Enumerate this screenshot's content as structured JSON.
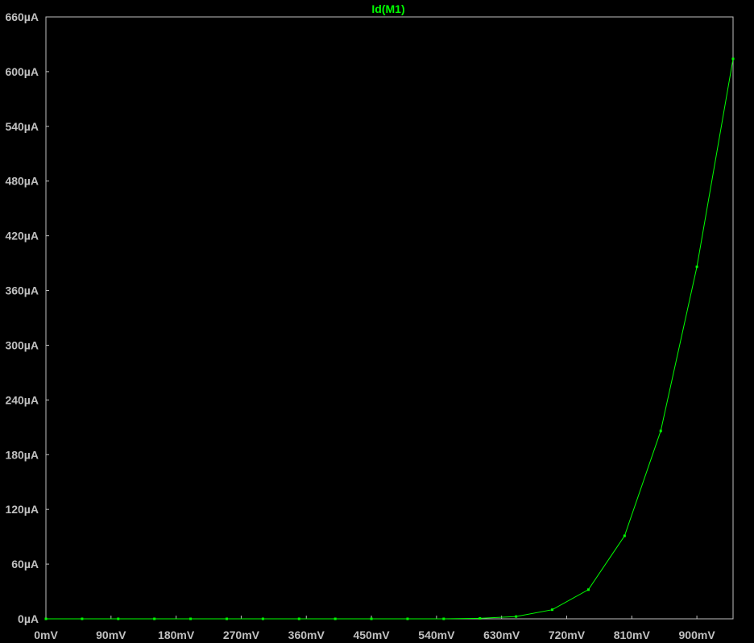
{
  "chart_data": {
    "type": "line",
    "title": "Id(M1)",
    "xlabel": "",
    "ylabel": "",
    "x_unit": "mV",
    "y_unit": "µA",
    "xlim": [
      0,
      950
    ],
    "ylim": [
      0,
      660
    ],
    "x_ticks": [
      {
        "value": 0,
        "label": "0mV"
      },
      {
        "value": 90,
        "label": "90mV"
      },
      {
        "value": 180,
        "label": "180mV"
      },
      {
        "value": 270,
        "label": "270mV"
      },
      {
        "value": 360,
        "label": "360mV"
      },
      {
        "value": 450,
        "label": "450mV"
      },
      {
        "value": 540,
        "label": "540mV"
      },
      {
        "value": 630,
        "label": "630mV"
      },
      {
        "value": 720,
        "label": "720mV"
      },
      {
        "value": 810,
        "label": "810mV"
      },
      {
        "value": 900,
        "label": "900mV"
      }
    ],
    "y_ticks": [
      {
        "value": 0,
        "label": "0µA"
      },
      {
        "value": 60,
        "label": "60µA"
      },
      {
        "value": 120,
        "label": "120µA"
      },
      {
        "value": 180,
        "label": "180µA"
      },
      {
        "value": 240,
        "label": "240µA"
      },
      {
        "value": 300,
        "label": "300µA"
      },
      {
        "value": 360,
        "label": "360µA"
      },
      {
        "value": 420,
        "label": "420µA"
      },
      {
        "value": 480,
        "label": "480µA"
      },
      {
        "value": 540,
        "label": "540µA"
      },
      {
        "value": 600,
        "label": "600µA"
      },
      {
        "value": 660,
        "label": "660µA"
      }
    ],
    "grid": false,
    "series": [
      {
        "name": "Id(M1)",
        "color": "#00ff00",
        "x": [
          0,
          50,
          100,
          150,
          200,
          250,
          300,
          350,
          400,
          450,
          500,
          550,
          600,
          650,
          700,
          750,
          800,
          850,
          900,
          950
        ],
        "y": [
          0,
          0,
          0,
          0,
          0,
          0,
          0,
          0,
          0,
          0,
          0,
          0,
          0.5,
          2.5,
          10,
          32,
          91,
          206,
          386,
          614
        ]
      }
    ]
  },
  "colors": {
    "background": "#000000",
    "frame": "#c0c0c0",
    "tick_text": "#c0c0c0",
    "trace": "#00ff00"
  }
}
